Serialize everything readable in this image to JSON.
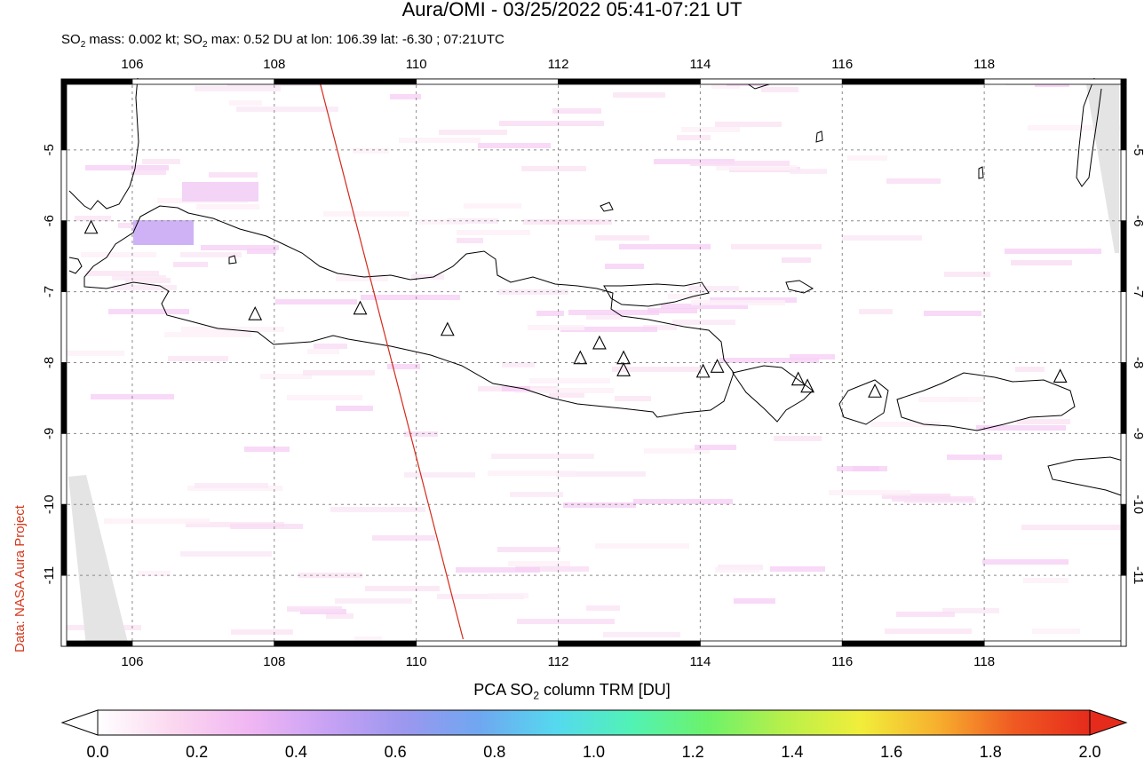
{
  "header": {
    "title": "Aura/OMI - 03/25/2022 05:41-07:21 UT",
    "subtitle_prefix": "SO",
    "subtitle_sub": "2",
    "subtitle_mid": " mass: 0.002 kt; SO",
    "subtitle_sub2": "2",
    "subtitle_rest": " max: 0.52 DU at lon: 106.39 lat: -6.30 ; 07:21UTC"
  },
  "credit": "Data: NASA Aura Project",
  "map": {
    "lon_range": [
      105.0,
      120.0
    ],
    "lat_range": [
      -12.0,
      -4.0
    ],
    "lon_ticks": [
      "106",
      "108",
      "110",
      "112",
      "114",
      "116",
      "118"
    ],
    "lat_ticks": [
      "-5",
      "-6",
      "-7",
      "-8",
      "-9",
      "-10",
      "-11"
    ],
    "lon_tick_values": [
      106,
      108,
      110,
      112,
      114,
      116,
      118
    ],
    "lat_tick_values": [
      -5,
      -6,
      -7,
      -8,
      -9,
      -10,
      -11
    ],
    "grid": true,
    "volcanoes": [
      {
        "lon": 105.42,
        "lat": -6.1
      },
      {
        "lon": 107.73,
        "lat": -7.32
      },
      {
        "lon": 109.21,
        "lat": -7.24
      },
      {
        "lon": 110.44,
        "lat": -7.54
      },
      {
        "lon": 112.31,
        "lat": -7.94
      },
      {
        "lon": 112.58,
        "lat": -7.73
      },
      {
        "lon": 112.92,
        "lat": -7.94
      },
      {
        "lon": 112.92,
        "lat": -8.11
      },
      {
        "lon": 114.04,
        "lat": -8.13
      },
      {
        "lon": 114.24,
        "lat": -8.06
      },
      {
        "lon": 115.38,
        "lat": -8.24
      },
      {
        "lon": 115.51,
        "lat": -8.34
      },
      {
        "lon": 116.46,
        "lat": -8.41
      },
      {
        "lon": 119.07,
        "lat": -8.2
      }
    ],
    "orbit_track": {
      "from": {
        "lon": 108.63,
        "lat": -4.0
      },
      "to": {
        "lon": 110.66,
        "lat": -11.9
      },
      "color": "#d42a1a"
    },
    "colors": {
      "coast": "#000000",
      "track": "#d42a1a",
      "nodata": "#e4e4e4",
      "grid": "#8a8a8a"
    }
  },
  "colorbar": {
    "title_prefix": "PCA SO",
    "title_sub": "2",
    "title_rest": " column TRM [DU]",
    "ticks": [
      "0.0",
      "0.2",
      "0.4",
      "0.6",
      "0.8",
      "1.0",
      "1.2",
      "1.4",
      "1.6",
      "1.8",
      "2.0"
    ],
    "range": [
      0.0,
      2.0
    ],
    "colors": [
      "#ffffff",
      "#fbd7ef",
      "#f0b6f3",
      "#c8a2f4",
      "#9c97ef",
      "#6fa7f0",
      "#55d9ef",
      "#51f2b5",
      "#6cf26a",
      "#b8f04a",
      "#f1ee3a",
      "#f7b02e",
      "#f05a22",
      "#e52b1c"
    ]
  }
}
